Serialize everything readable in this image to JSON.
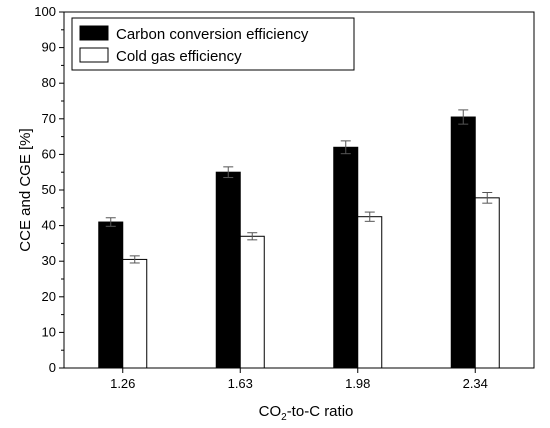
{
  "chart_data": {
    "type": "bar",
    "categories": [
      "1.26",
      "1.63",
      "1.98",
      "2.34"
    ],
    "series": [
      {
        "name": "Carbon conversion efficiency",
        "values": [
          41,
          55,
          62,
          70.5
        ],
        "errors": [
          1.2,
          1.5,
          1.8,
          2.0
        ],
        "color": "#000000"
      },
      {
        "name": "Cold gas efficiency",
        "values": [
          30.5,
          37,
          42.5,
          47.8
        ],
        "errors": [
          1.0,
          1.0,
          1.3,
          1.5
        ],
        "color": "#ffffff"
      }
    ],
    "xlabel_main": "CO",
    "xlabel_sub": "2",
    "xlabel_tail": "-to-C ratio",
    "ylabel": "CCE and CGE [%]",
    "ylim": [
      0,
      100
    ],
    "yticks": [
      "0",
      "10",
      "20",
      "30",
      "40",
      "50",
      "60",
      "70",
      "80",
      "90",
      "100"
    ],
    "legend_position": "top-left",
    "grid": false
  }
}
